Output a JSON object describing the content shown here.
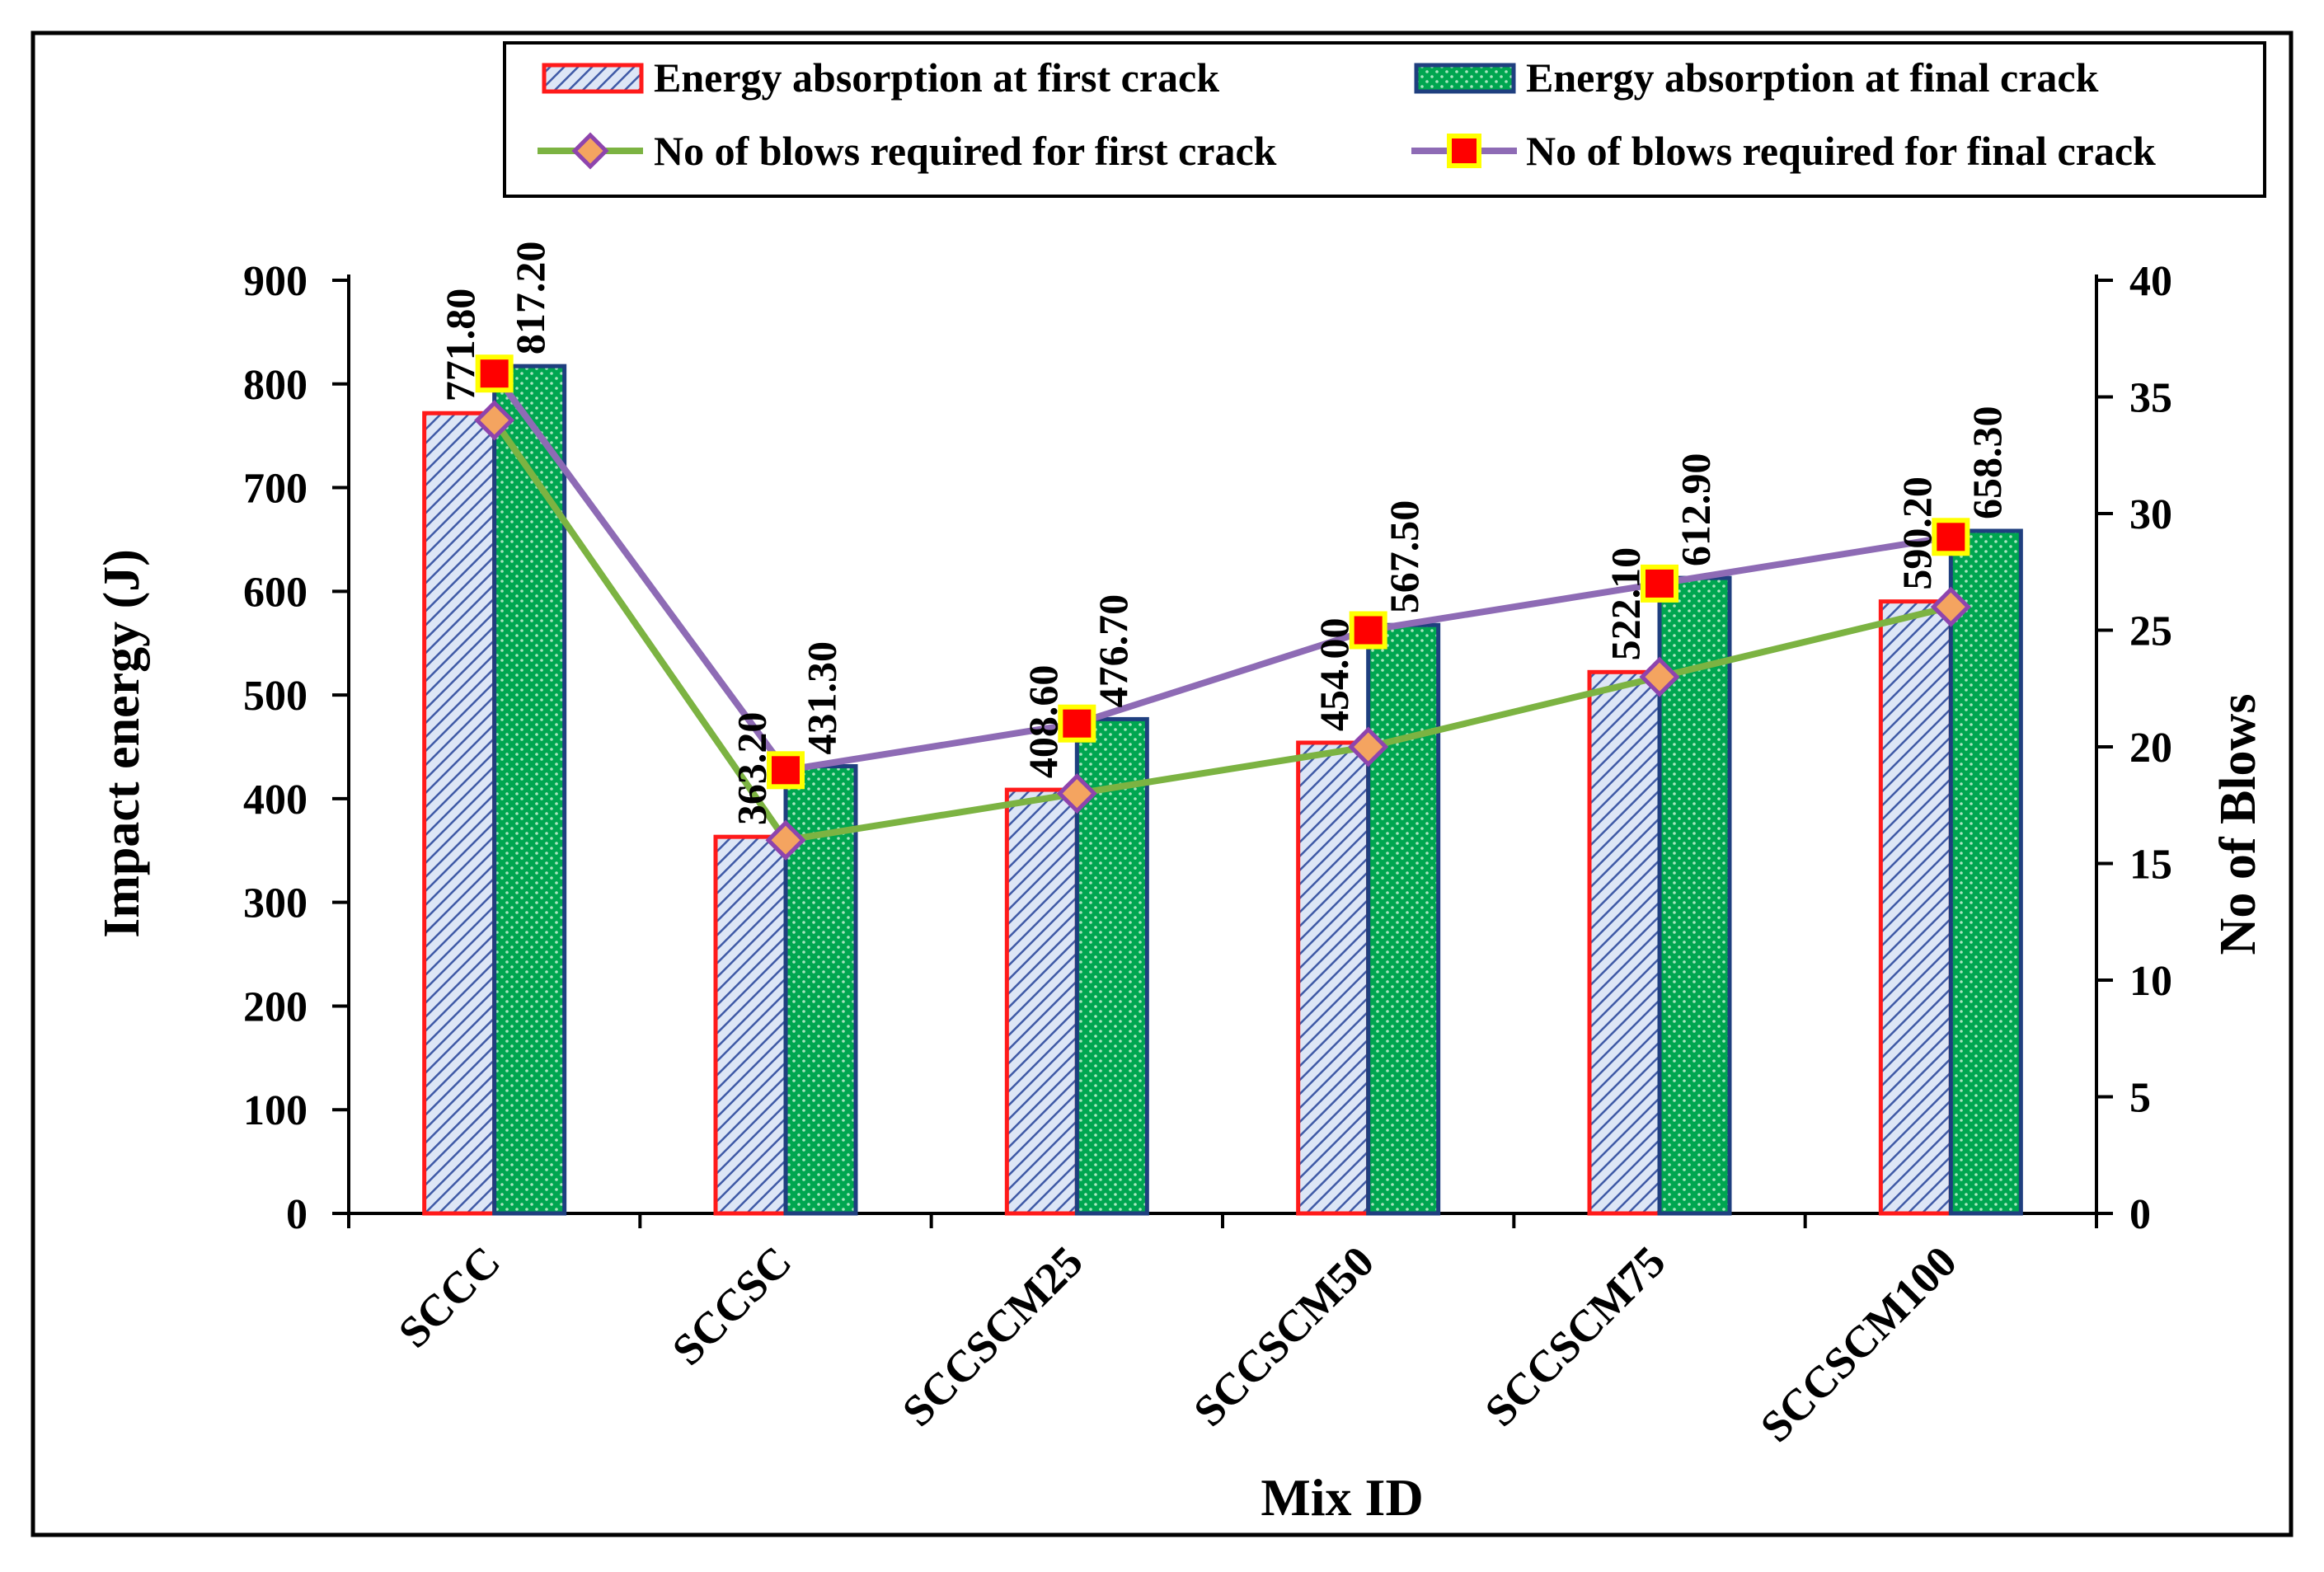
{
  "chart_data": {
    "type": "bar",
    "title": "",
    "xlabel": "Mix ID",
    "ylabel": "Impact energy (J)",
    "y2label": "No of Blows",
    "ylim": [
      0,
      900
    ],
    "y_ticks": [
      0,
      100,
      200,
      300,
      400,
      500,
      600,
      700,
      800,
      900
    ],
    "y2lim": [
      0,
      40
    ],
    "y2_ticks": [
      0,
      5,
      10,
      15,
      20,
      25,
      30,
      35,
      40
    ],
    "grid": false,
    "legend_position": "top-right",
    "categories": [
      "SCCC",
      "SCCSC",
      "SCCSCM25",
      "SCCSCM50",
      "SCCSCM75",
      "SCCSCM100"
    ],
    "series": [
      {
        "name": "Energy absorption at first crack",
        "kind": "bar",
        "axis": "left",
        "values": [
          771.8,
          363.2,
          408.6,
          454.0,
          522.1,
          590.2
        ],
        "labels": [
          "771.80",
          "363.20",
          "408.60",
          "454.00",
          "522.10",
          "590.20"
        ],
        "fill": "#dde6f6",
        "hatch_color": "#3f5aa6",
        "stroke": "#ff1a1a"
      },
      {
        "name": "Energy absorption at final crack",
        "kind": "bar",
        "axis": "left",
        "values": [
          817.2,
          431.3,
          476.7,
          567.5,
          612.9,
          658.3
        ],
        "labels": [
          "817.20",
          "431.30",
          "476.70",
          "567.50",
          "612.90",
          "658.30"
        ],
        "fill": "#00a650",
        "hatch_color": "#a8e6c0",
        "stroke": "#1f3f7f"
      },
      {
        "name": "No  of blows required for first crack",
        "kind": "line",
        "axis": "right",
        "values": [
          34,
          16,
          18,
          20,
          23,
          26
        ],
        "line_color": "#7cb342",
        "marker": "diamond",
        "marker_fill": "#f4a460",
        "marker_stroke": "#8e44ad"
      },
      {
        "name": "No  of blows required for final crack",
        "kind": "line",
        "axis": "right",
        "values": [
          36,
          19,
          21,
          25,
          27,
          29
        ],
        "line_color": "#8e6bb5",
        "marker": "square",
        "marker_fill": "#ff0000",
        "marker_stroke": "#ffff00"
      }
    ]
  }
}
